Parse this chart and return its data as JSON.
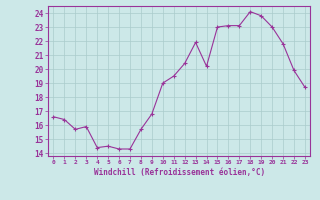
{
  "x": [
    0,
    1,
    2,
    3,
    4,
    5,
    6,
    7,
    8,
    9,
    10,
    11,
    12,
    13,
    14,
    15,
    16,
    17,
    18,
    19,
    20,
    21,
    22,
    23
  ],
  "y": [
    16.6,
    16.4,
    15.7,
    15.9,
    14.4,
    14.5,
    14.3,
    14.3,
    15.7,
    16.8,
    19.0,
    19.5,
    20.4,
    21.9,
    20.2,
    23.0,
    23.1,
    23.1,
    24.1,
    23.8,
    23.0,
    21.8,
    19.9,
    18.7
  ],
  "line_color": "#993399",
  "marker": "+",
  "marker_color": "#993399",
  "bg_color": "#cce8e8",
  "grid_color": "#aacccc",
  "xlabel": "Windchill (Refroidissement éolien,°C)",
  "xlabel_color": "#993399",
  "ylabel_ticks": [
    14,
    15,
    16,
    17,
    18,
    19,
    20,
    21,
    22,
    23,
    24
  ],
  "ylim": [
    13.8,
    24.5
  ],
  "xlim": [
    -0.5,
    23.5
  ],
  "xtick_labels": [
    "0",
    "1",
    "2",
    "3",
    "4",
    "5",
    "6",
    "7",
    "8",
    "9",
    "10",
    "11",
    "12",
    "13",
    "14",
    "15",
    "16",
    "17",
    "18",
    "19",
    "20",
    "21",
    "22",
    "23"
  ]
}
